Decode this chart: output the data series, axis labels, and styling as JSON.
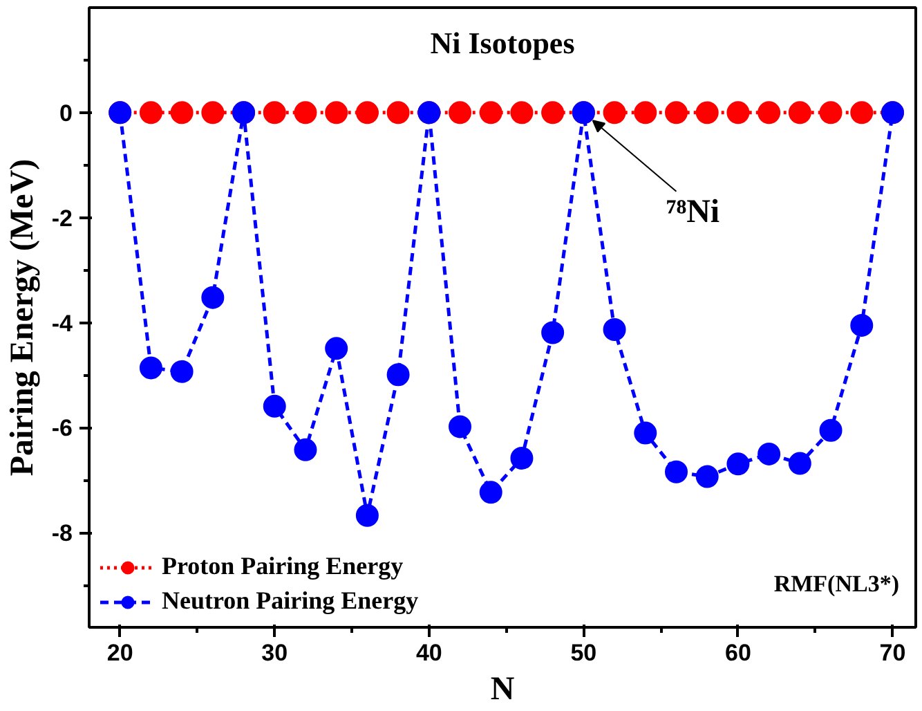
{
  "chart_data": {
    "type": "line",
    "title": "Ni Isotopes",
    "xlabel": "N",
    "ylabel": "Pairing Energy (MeV)",
    "x": [
      20,
      22,
      24,
      26,
      28,
      30,
      32,
      34,
      36,
      38,
      40,
      42,
      44,
      46,
      48,
      50,
      52,
      54,
      56,
      58,
      60,
      62,
      64,
      66,
      68,
      70
    ],
    "series": [
      {
        "name": "Proton Pairing Energy",
        "color": "#ff0000",
        "marker": "circle",
        "line_style": "dotted",
        "values": [
          0,
          0,
          0,
          0,
          0,
          0,
          0,
          0,
          0,
          0,
          0,
          0,
          0,
          0,
          0,
          0,
          0,
          0,
          0,
          0,
          0,
          0,
          0,
          0,
          0,
          0
        ]
      },
      {
        "name": "Neutron Pairing Energy",
        "color": "#0000ff",
        "marker": "circle",
        "line_style": "dashed",
        "values": [
          0,
          -4.86,
          -4.93,
          -3.52,
          0,
          -5.59,
          -6.42,
          -4.49,
          -7.67,
          -4.99,
          0,
          -5.98,
          -7.23,
          -6.58,
          -4.19,
          0,
          -4.13,
          -6.1,
          -6.84,
          -6.93,
          -6.69,
          -6.5,
          -6.68,
          -6.05,
          -4.05,
          0
        ]
      }
    ],
    "annotations": [
      {
        "text": "⁷⁸Ni",
        "x": 50,
        "y": 0
      },
      "RMF(NL3*)"
    ],
    "xlim": [
      18,
      71.5
    ],
    "ylim": [
      -9.8,
      2
    ],
    "xticks": [
      20,
      30,
      40,
      50,
      60,
      70
    ],
    "yticks": [
      0,
      -2,
      -4,
      -6,
      -8
    ],
    "grid": false,
    "legend": "bottom left"
  }
}
